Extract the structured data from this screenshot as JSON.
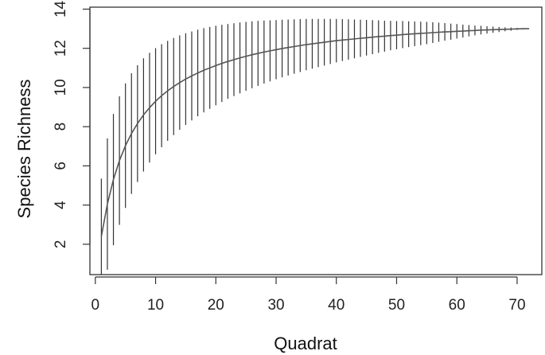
{
  "chart_data": {
    "type": "line",
    "title": "",
    "xlabel": "Quadrat",
    "ylabel": "Species Richness",
    "xlim": [
      -0.9,
      74.1
    ],
    "ylim": [
      0.45,
      14.1
    ],
    "x_ticks": [
      0,
      10,
      20,
      30,
      40,
      50,
      60,
      70
    ],
    "y_ticks": [
      2,
      4,
      6,
      8,
      10,
      12,
      14
    ],
    "grid": false,
    "legend": "none",
    "colors": {
      "line": "#555555",
      "error_bars": "#333333",
      "axis": "#333333"
    },
    "series": [
      {
        "x": [
          1,
          2,
          3,
          4,
          5,
          6,
          7,
          8,
          9,
          10,
          11,
          12,
          13,
          14,
          15,
          16,
          17,
          18,
          19,
          20,
          21,
          22,
          23,
          24,
          25,
          26,
          27,
          28,
          29,
          30,
          31,
          32,
          33,
          34,
          35,
          36,
          37,
          38,
          39,
          40,
          41,
          42,
          43,
          44,
          45,
          46,
          47,
          48,
          49,
          50,
          51,
          52,
          53,
          54,
          55,
          56,
          57,
          58,
          59,
          60,
          61,
          62,
          63,
          64,
          65,
          66,
          67,
          68,
          69,
          70,
          71,
          72
        ],
        "y": [
          2.4,
          4.05,
          5.3,
          6.27,
          7.03,
          7.65,
          8.16,
          8.6,
          8.97,
          9.3,
          9.58,
          9.83,
          10.05,
          10.25,
          10.43,
          10.59,
          10.74,
          10.88,
          11.0,
          11.12,
          11.23,
          11.33,
          11.42,
          11.51,
          11.59,
          11.67,
          11.74,
          11.81,
          11.87,
          11.93,
          11.99,
          12.04,
          12.09,
          12.14,
          12.19,
          12.23,
          12.27,
          12.31,
          12.35,
          12.39,
          12.42,
          12.45,
          12.48,
          12.51,
          12.54,
          12.57,
          12.6,
          12.62,
          12.65,
          12.67,
          12.7,
          12.72,
          12.74,
          12.76,
          12.78,
          12.8,
          12.82,
          12.84,
          12.85,
          12.87,
          12.88,
          12.9,
          12.91,
          12.93,
          12.94,
          12.95,
          12.96,
          12.97,
          12.98,
          12.99,
          13.0,
          13.0
        ],
        "sd": [
          2.95,
          3.35,
          3.35,
          3.28,
          3.18,
          3.08,
          2.98,
          2.89,
          2.8,
          2.71,
          2.63,
          2.55,
          2.48,
          2.41,
          2.34,
          2.27,
          2.21,
          2.15,
          2.09,
          2.03,
          1.97,
          1.91,
          1.86,
          1.81,
          1.76,
          1.71,
          1.66,
          1.61,
          1.56,
          1.51,
          1.47,
          1.43,
          1.39,
          1.35,
          1.31,
          1.27,
          1.23,
          1.19,
          1.15,
          1.11,
          1.07,
          1.03,
          0.99,
          0.95,
          0.91,
          0.87,
          0.83,
          0.79,
          0.75,
          0.72,
          0.69,
          0.66,
          0.63,
          0.6,
          0.57,
          0.53,
          0.49,
          0.45,
          0.41,
          0.37,
          0.33,
          0.29,
          0.25,
          0.22,
          0.19,
          0.16,
          0.13,
          0.1,
          0.08,
          0.05,
          0.03,
          0.0
        ]
      }
    ]
  }
}
